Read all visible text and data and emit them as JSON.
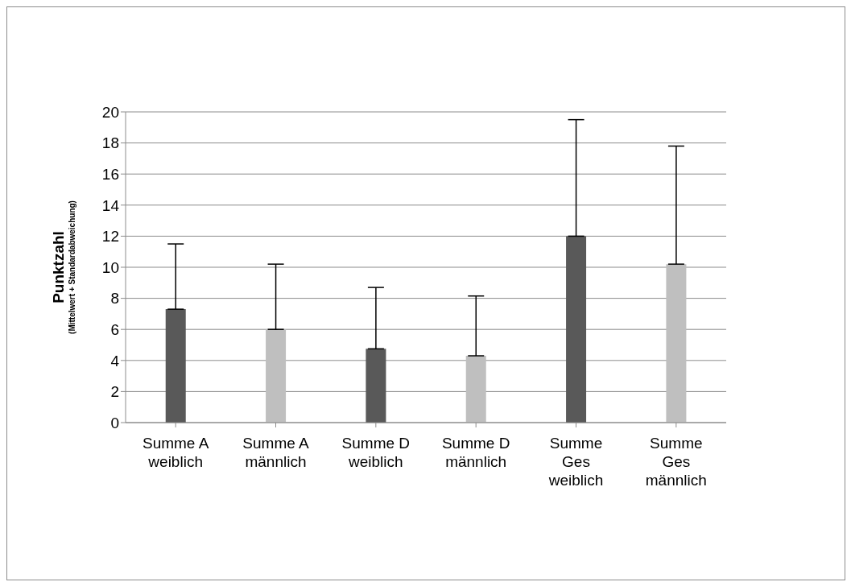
{
  "chart_data": {
    "type": "bar",
    "ylabel": "Punktzahl\n(Mittelwert + Standardabweichung)",
    "categories": [
      "Summe A weiblich",
      "Summe A männlich",
      "Summe D weiblich",
      "Summe D männlich",
      "Summe Ges weiblich",
      "Summe Ges männlich"
    ],
    "values": [
      7.3,
      6.0,
      4.75,
      4.3,
      12.0,
      10.2
    ],
    "errors": [
      [
        7.3,
        11.5
      ],
      [
        6.0,
        10.2
      ],
      [
        4.75,
        8.7
      ],
      [
        4.3,
        8.15
      ],
      [
        12.0,
        19.5
      ],
      [
        10.2,
        17.8
      ]
    ],
    "colors": [
      "#595959",
      "#bfbfbf",
      "#595959",
      "#bfbfbf",
      "#595959",
      "#bfbfbf"
    ],
    "ylim": [
      0,
      20
    ],
    "yticks": [
      0,
      2,
      4,
      6,
      8,
      10,
      12,
      14,
      16,
      18,
      20
    ],
    "grid": "y",
    "legend": false
  }
}
